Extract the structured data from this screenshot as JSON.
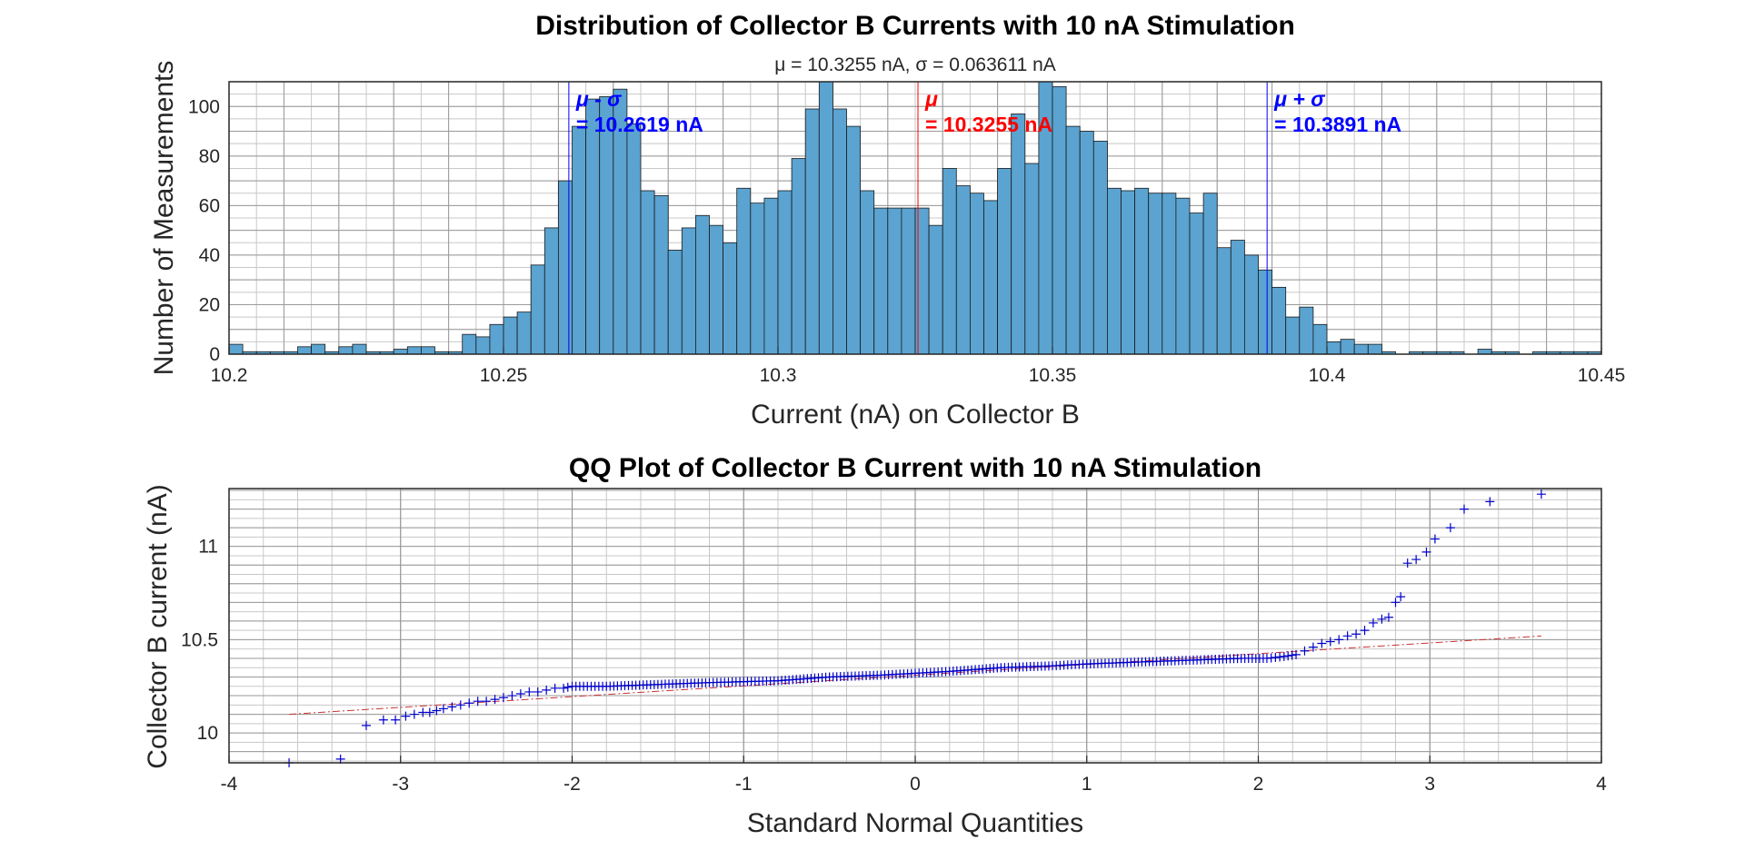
{
  "chart_data": [
    {
      "type": "bar",
      "title": "Distribution of Collector B Currents with 10 nA Stimulation",
      "subtitle": "μ = 10.3255 nA, σ = 0.063611 nA",
      "xlabel": "Current (nA) on Collector B",
      "ylabel": "Number of Measurements",
      "xlim": [
        10.2,
        10.45
      ],
      "ylim": [
        0,
        110
      ],
      "xticks": [
        "10.2",
        "10.25",
        "10.3",
        "10.35",
        "10.4",
        "10.45"
      ],
      "yticks": [
        "0",
        "20",
        "40",
        "60",
        "80",
        "100"
      ],
      "grid": true,
      "bin_start": 10.2,
      "bin_width": 0.0025,
      "values": [
        4,
        1,
        1,
        1,
        1,
        3,
        4,
        1,
        3,
        4,
        1,
        1,
        2,
        3,
        3,
        1,
        1,
        8,
        7,
        12,
        15,
        17,
        36,
        51,
        70,
        92,
        103,
        104,
        107,
        93,
        66,
        64,
        42,
        51,
        56,
        52,
        45,
        67,
        61,
        63,
        66,
        79,
        99,
        110,
        99,
        92,
        66,
        59,
        59,
        59,
        59,
        52,
        75,
        68,
        65,
        62,
        75,
        97,
        77,
        110,
        108,
        92,
        90,
        86,
        67,
        66,
        67,
        65,
        65,
        63,
        57,
        65,
        43,
        46,
        40,
        34,
        27,
        15,
        19,
        12,
        5,
        6,
        4,
        4,
        1,
        0,
        1,
        1,
        1,
        1,
        0,
        2,
        1,
        1,
        0,
        1,
        1,
        1,
        1,
        1
      ],
      "annotations": [
        {
          "x": 10.2619,
          "label_top": "μ - σ",
          "label_bottom": "= 10.2619 nA",
          "color": "#0000ff"
        },
        {
          "x": 10.3255,
          "label_top": "μ",
          "label_bottom": "= 10.3255 nA",
          "color": "#ff0000"
        },
        {
          "x": 10.3891,
          "label_top": "μ + σ",
          "label_bottom": "= 10.3891 nA",
          "color": "#0000ff"
        }
      ],
      "bar_color": "#5ba3d0"
    },
    {
      "type": "scatter",
      "title": "QQ Plot of Collector B Current with 10 nA Stimulation",
      "xlabel": "Standard Normal Quantities",
      "ylabel": "Collector B current (nA)",
      "xlim": [
        -4,
        4
      ],
      "ylim": [
        9.84,
        11.31
      ],
      "xticks": [
        "-4",
        "-3",
        "-2",
        "-1",
        "0",
        "1",
        "2",
        "3",
        "4"
      ],
      "yticks": [
        "10",
        "10.5",
        "11"
      ],
      "grid": true,
      "marker_color": "#0000cc",
      "reference_line": {
        "x": [
          -3.65,
          3.65
        ],
        "y": [
          10.1,
          10.52
        ],
        "color": "#cc3333"
      },
      "points": [
        [
          -3.65,
          9.84
        ],
        [
          -3.35,
          9.86
        ],
        [
          -3.2,
          10.04
        ],
        [
          -3.1,
          10.07
        ],
        [
          -3.03,
          10.07
        ],
        [
          -2.97,
          10.09
        ],
        [
          -2.92,
          10.1
        ],
        [
          -2.87,
          10.11
        ],
        [
          -2.83,
          10.11
        ],
        [
          -2.79,
          10.12
        ],
        [
          -2.75,
          10.13
        ],
        [
          -2.7,
          10.14
        ],
        [
          -2.65,
          10.15
        ],
        [
          -2.6,
          10.16
        ],
        [
          -2.55,
          10.17
        ],
        [
          -2.5,
          10.17
        ],
        [
          -2.45,
          10.18
        ],
        [
          -2.4,
          10.19
        ],
        [
          -2.35,
          10.2
        ],
        [
          -2.3,
          10.21
        ],
        [
          -2.25,
          10.22
        ],
        [
          -2.2,
          10.22
        ],
        [
          -2.15,
          10.23
        ],
        [
          -2.1,
          10.24
        ],
        [
          -2.05,
          10.24
        ],
        [
          -2.0,
          10.25
        ],
        [
          -1.8,
          10.25
        ],
        [
          -1.5,
          10.26
        ],
        [
          -1.2,
          10.27
        ],
        [
          -0.8,
          10.28
        ],
        [
          -0.5,
          10.3
        ],
        [
          -0.2,
          10.31
        ],
        [
          0.0,
          10.32
        ],
        [
          0.2,
          10.33
        ],
        [
          0.5,
          10.35
        ],
        [
          0.8,
          10.36
        ],
        [
          1.0,
          10.37
        ],
        [
          1.3,
          10.38
        ],
        [
          1.6,
          10.39
        ],
        [
          1.9,
          10.4
        ],
        [
          2.05,
          10.4
        ],
        [
          2.15,
          10.41
        ],
        [
          2.22,
          10.42
        ],
        [
          2.27,
          10.44
        ],
        [
          2.32,
          10.46
        ],
        [
          2.37,
          10.48
        ],
        [
          2.42,
          10.49
        ],
        [
          2.47,
          10.5
        ],
        [
          2.52,
          10.52
        ],
        [
          2.57,
          10.53
        ],
        [
          2.62,
          10.55
        ],
        [
          2.67,
          10.59
        ],
        [
          2.72,
          10.61
        ],
        [
          2.76,
          10.62
        ],
        [
          2.8,
          10.7
        ],
        [
          2.83,
          10.73
        ],
        [
          2.87,
          10.91
        ],
        [
          2.92,
          10.93
        ],
        [
          2.98,
          10.97
        ],
        [
          3.03,
          11.04
        ],
        [
          3.12,
          11.1
        ],
        [
          3.2,
          11.2
        ],
        [
          3.35,
          11.24
        ],
        [
          3.65,
          11.28
        ]
      ]
    }
  ]
}
